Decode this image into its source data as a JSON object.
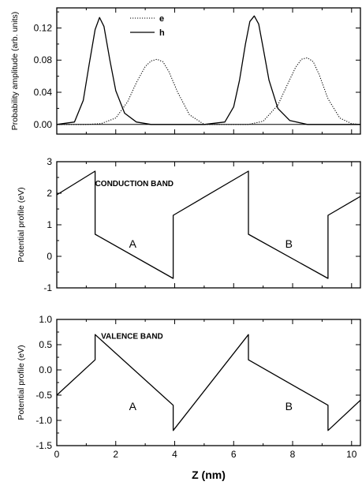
{
  "chart_data": [
    {
      "type": "line",
      "xlabel": "",
      "ylabel": "Probability amplitude (arb. units)",
      "xlim": [
        0,
        10.3
      ],
      "ylim": [
        -0.012,
        0.145
      ],
      "yticks": [
        0.0,
        0.04,
        0.08,
        0.12
      ],
      "ytick_labels": [
        "0.00",
        "0.04",
        "0.08",
        "0.12"
      ],
      "xticks": [
        0,
        2,
        4,
        6,
        8,
        10
      ],
      "show_xtick_labels": false,
      "legend": {
        "placement": "top-center",
        "entries": [
          "e",
          "h"
        ]
      },
      "series": [
        {
          "name": "e",
          "style": "dotted",
          "color": "#000000",
          "x": [
            0.0,
            0.5,
            1.0,
            1.5,
            2.0,
            2.4,
            2.7,
            3.0,
            3.2,
            3.4,
            3.6,
            3.8,
            4.1,
            4.5,
            5.0,
            5.5,
            6.0,
            6.5,
            7.0,
            7.5,
            7.8,
            8.1,
            8.3,
            8.5,
            8.7,
            8.9,
            9.2,
            9.6,
            10.0,
            10.3
          ],
          "values": [
            0.0,
            0.0,
            0.0,
            0.001,
            0.008,
            0.028,
            0.052,
            0.072,
            0.079,
            0.081,
            0.078,
            0.066,
            0.04,
            0.012,
            0.0,
            0.0,
            0.0,
            0.0,
            0.004,
            0.024,
            0.048,
            0.071,
            0.081,
            0.083,
            0.078,
            0.062,
            0.032,
            0.008,
            0.001,
            0.0
          ]
        },
        {
          "name": "h",
          "style": "solid",
          "color": "#000000",
          "x": [
            0.0,
            0.6,
            0.9,
            1.1,
            1.3,
            1.45,
            1.6,
            1.8,
            2.0,
            2.3,
            2.7,
            3.2,
            4.0,
            5.0,
            5.7,
            6.0,
            6.2,
            6.4,
            6.55,
            6.7,
            6.85,
            7.0,
            7.2,
            7.5,
            7.9,
            8.5,
            9.5,
            10.3
          ],
          "values": [
            0.0,
            0.003,
            0.03,
            0.075,
            0.118,
            0.133,
            0.122,
            0.08,
            0.042,
            0.014,
            0.003,
            0.0,
            0.0,
            0.0,
            0.003,
            0.022,
            0.055,
            0.1,
            0.128,
            0.135,
            0.125,
            0.095,
            0.055,
            0.02,
            0.005,
            0.0,
            0.0,
            0.0
          ]
        }
      ]
    },
    {
      "type": "line",
      "xlabel": "",
      "ylabel": "Potential profile (eV)",
      "xlim": [
        0,
        10.3
      ],
      "ylim": [
        -1,
        3
      ],
      "yticks": [
        -1,
        0,
        1,
        2,
        3
      ],
      "ytick_labels": [
        "-1",
        "0",
        "1",
        "2",
        "3"
      ],
      "xticks": [
        0,
        2,
        4,
        6,
        8,
        10
      ],
      "show_xtick_labels": false,
      "series": [
        {
          "name": "",
          "style": "solid",
          "color": "#000000",
          "x": [
            0,
            1.3,
            1.3,
            3.95,
            3.95,
            6.5,
            6.5,
            9.2,
            9.2,
            10.3
          ],
          "values": [
            1.95,
            2.7,
            0.7,
            -0.7,
            1.3,
            2.7,
            0.7,
            -0.7,
            1.3,
            1.9
          ]
        }
      ],
      "annotations": [
        {
          "text": "CONDUCTION BAND",
          "x": 1.3,
          "y": 2.22
        },
        {
          "text": "A",
          "x": 2.45,
          "y": 0.28
        },
        {
          "text": "B",
          "x": 7.75,
          "y": 0.28
        }
      ]
    },
    {
      "type": "line",
      "xlabel": "Z (nm)",
      "ylabel": "Potential profile (eV)",
      "xlim": [
        0,
        10.3
      ],
      "ylim": [
        -1.5,
        1.0
      ],
      "yticks": [
        -1.5,
        -1.0,
        -0.5,
        0.0,
        0.5,
        1.0
      ],
      "ytick_labels": [
        "-1.5",
        "-1.0",
        "-0.5",
        "0.0",
        "0.5",
        "1.0"
      ],
      "xticks": [
        0,
        2,
        4,
        6,
        8,
        10
      ],
      "xtick_labels": [
        "0",
        "2",
        "4",
        "6",
        "8",
        "10"
      ],
      "show_xtick_labels": true,
      "series": [
        {
          "name": "",
          "style": "solid",
          "color": "#000000",
          "x": [
            0,
            1.3,
            1.3,
            3.95,
            3.95,
            6.5,
            6.5,
            9.2,
            9.2,
            10.3
          ],
          "values": [
            -0.5,
            0.2,
            0.7,
            -0.7,
            -1.2,
            0.7,
            0.2,
            -0.7,
            -1.2,
            -0.6
          ]
        }
      ],
      "annotations": [
        {
          "text": "VALENCE BAND",
          "x": 1.5,
          "y": 0.62
        },
        {
          "text": "A",
          "x": 2.45,
          "y": -0.8
        },
        {
          "text": "B",
          "x": 7.75,
          "y": -0.8
        }
      ]
    }
  ]
}
